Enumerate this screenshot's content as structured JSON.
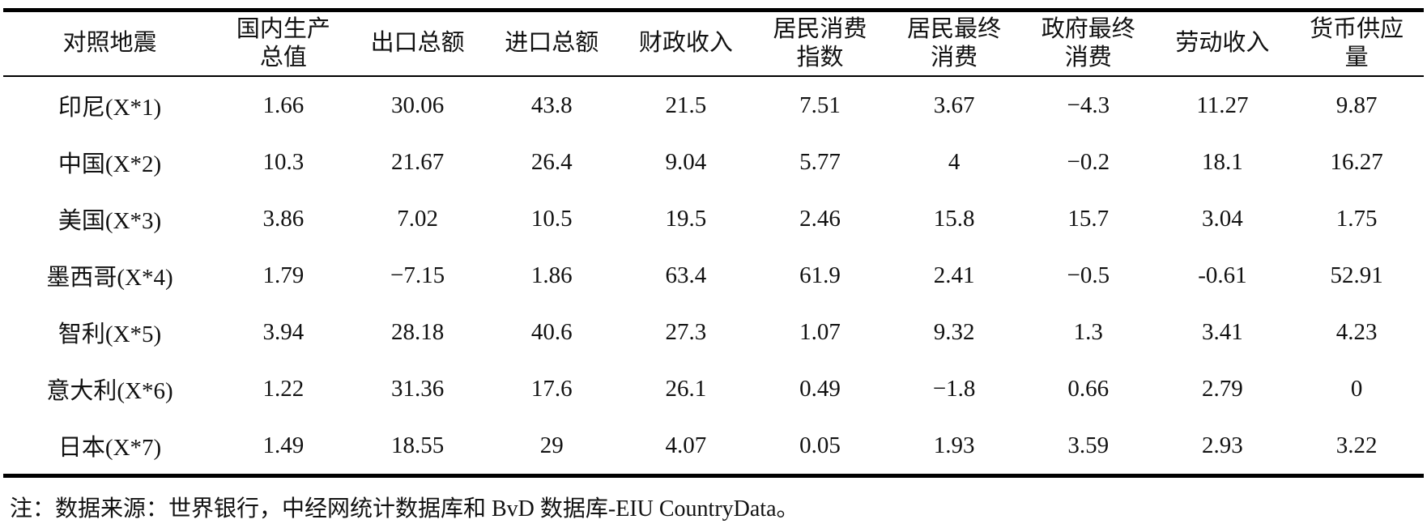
{
  "table": {
    "headers": [
      {
        "label": "对照地震"
      },
      {
        "label": "国内生产\n总值"
      },
      {
        "label": "出口总额"
      },
      {
        "label": "进口总额"
      },
      {
        "label": "财政收入"
      },
      {
        "label": "居民消费\n指数"
      },
      {
        "label": "居民最终\n消费"
      },
      {
        "label": "政府最终\n消费"
      },
      {
        "label": "劳动收入"
      },
      {
        "label": "货币供应\n量"
      }
    ],
    "rows": [
      {
        "label": "印尼(X*1)",
        "values": [
          "1.66",
          "30.06",
          "43.8",
          "21.5",
          "7.51",
          "3.67",
          "−4.3",
          "11.27",
          "9.87"
        ]
      },
      {
        "label": "中国(X*2)",
        "values": [
          "10.3",
          "21.67",
          "26.4",
          "9.04",
          "5.77",
          "4",
          "−0.2",
          "18.1",
          "16.27"
        ]
      },
      {
        "label": "美国(X*3)",
        "values": [
          "3.86",
          "7.02",
          "10.5",
          "19.5",
          "2.46",
          "15.8",
          "15.7",
          "3.04",
          "1.75"
        ]
      },
      {
        "label": "墨西哥(X*4)",
        "values": [
          "1.79",
          "−7.15",
          "1.86",
          "63.4",
          "61.9",
          "2.41",
          "−0.5",
          "-0.61",
          "52.91"
        ]
      },
      {
        "label": "智利(X*5)",
        "values": [
          "3.94",
          "28.18",
          "40.6",
          "27.3",
          "1.07",
          "9.32",
          "1.3",
          "3.41",
          "4.23"
        ]
      },
      {
        "label": "意大利(X*6)",
        "values": [
          "1.22",
          "31.36",
          "17.6",
          "26.1",
          "0.49",
          "−1.8",
          "0.66",
          "2.79",
          "0"
        ]
      },
      {
        "label": "日本(X*7)",
        "values": [
          "1.49",
          "18.55",
          "29",
          "4.07",
          "0.05",
          "1.93",
          "3.59",
          "2.93",
          "3.22"
        ]
      }
    ]
  },
  "footnote": "注：数据来源：世界银行，中经网统计数据库和 BvD 数据库-EIU CountryData。"
}
